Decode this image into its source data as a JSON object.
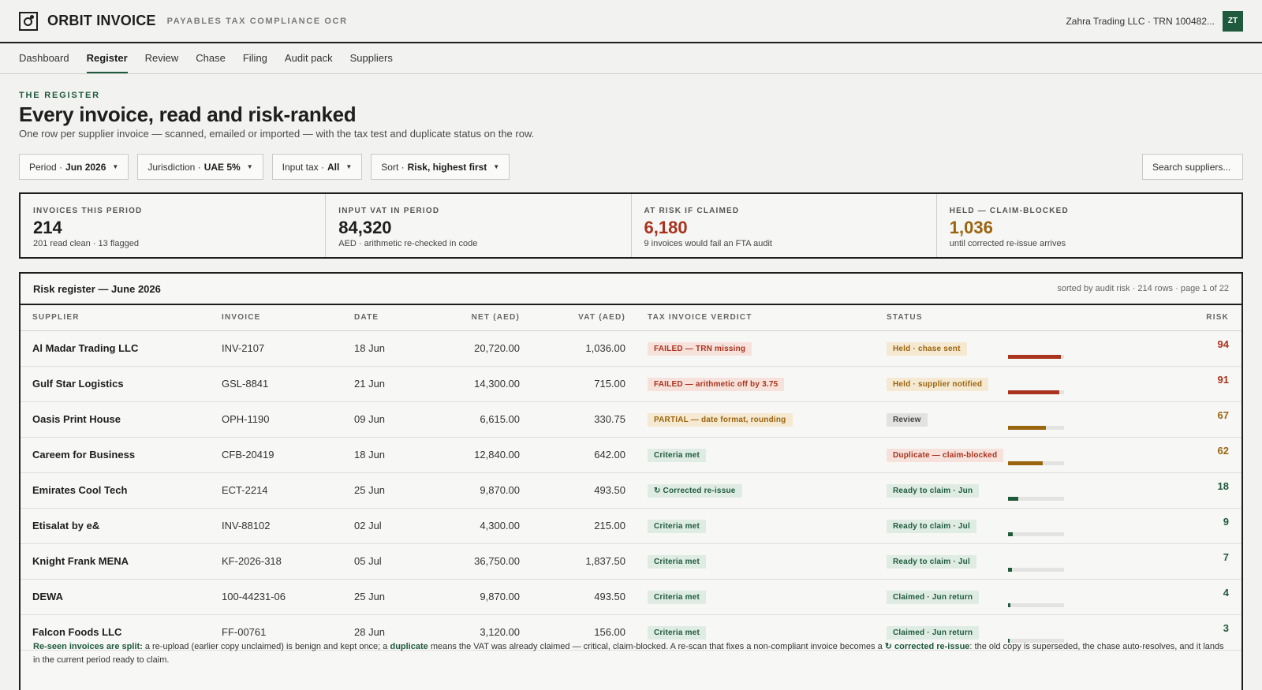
{
  "app": {
    "brand": "ORBIT INVOICE",
    "subtitle": "PAYABLES TAX COMPLIANCE OCR",
    "tenant": "Zahra Trading LLC · TRN 100482...",
    "avatar": "ZT"
  },
  "nav": [
    "Dashboard",
    "Register",
    "Review",
    "Chase",
    "Filing",
    "Audit pack",
    "Suppliers"
  ],
  "nav_active": "Register",
  "header": {
    "eyebrow": "THE REGISTER",
    "title": "Every invoice, read and risk-ranked",
    "subtitle": "One row per supplier invoice — scanned, emailed or imported — with the tax test and duplicate status on the row."
  },
  "filters": [
    {
      "label": "Period · ",
      "value": "Jun 2026"
    },
    {
      "label": "Jurisdiction · ",
      "value": "UAE 5%"
    },
    {
      "label": "Input tax · ",
      "value": "All"
    },
    {
      "label": "Sort · ",
      "value": "Risk, highest first"
    }
  ],
  "search": {
    "placeholder": "Search suppliers..."
  },
  "kpis": [
    {
      "label": "INVOICES THIS PERIOD",
      "value": "214",
      "note": "201 read clean · 13 flagged",
      "color": "#1d1f1c"
    },
    {
      "label": "INPUT VAT IN PERIOD",
      "value": "84,320",
      "note": "AED · arithmetic re-checked in code",
      "color": "#1d1f1c"
    },
    {
      "label": "AT RISK IF CLAIMED",
      "value": "6,180",
      "note": "9 invoices would fail an FTA audit",
      "color": "#a9331d"
    },
    {
      "label": "HELD — CLAIM-BLOCKED",
      "value": "1,036",
      "note": "until corrected re-issue arrives",
      "color": "#9a650f"
    }
  ],
  "register": {
    "title": "Risk register — June 2026",
    "meta": "sorted by audit risk · 214 rows · page 1 of 22",
    "columns": {
      "supplier": "SUPPLIER",
      "invoice": "INVOICE",
      "date": "DATE",
      "net": "NET (AED)",
      "vat": "VAT (AED)",
      "verdict": "TAX INVOICE VERDICT",
      "status": "STATUS",
      "risk": "RISK"
    },
    "rows": [
      {
        "supplier": "Al Madar Trading LLC",
        "invoice": "INV-2107",
        "date": "18 Jun",
        "net": "20,720.00",
        "vat": "1,036.00",
        "verdict": "FAILED — TRN missing",
        "verdict_tone": "red",
        "status": "Held · chase sent",
        "status_tone": "amber",
        "risk": "94",
        "risk_level": 0.94,
        "risk_color": "#a9331d"
      },
      {
        "supplier": "Gulf Star Logistics",
        "invoice": "GSL-8841",
        "date": "21 Jun",
        "net": "14,300.00",
        "vat": "715.00",
        "verdict": "FAILED — arithmetic off by 3.75",
        "verdict_tone": "red",
        "status": "Held · supplier notified",
        "status_tone": "amber",
        "risk": "91",
        "risk_level": 0.91,
        "risk_color": "#a9331d"
      },
      {
        "supplier": "Oasis Print House",
        "invoice": "OPH-1190",
        "date": "09 Jun",
        "net": "6,615.00",
        "vat": "330.75",
        "verdict": "PARTIAL — date format, rounding",
        "verdict_tone": "amber",
        "status": "Review",
        "status_tone": "grey",
        "risk": "67",
        "risk_level": 0.67,
        "risk_color": "#9a650f"
      },
      {
        "supplier": "Careem for Business",
        "invoice": "CFB-20419",
        "date": "18 Jun",
        "net": "12,840.00",
        "vat": "642.00",
        "verdict": "Criteria met",
        "verdict_tone": "green",
        "status": "Duplicate — claim-blocked",
        "status_tone": "dup",
        "risk": "62",
        "risk_level": 0.62,
        "risk_color": "#9a650f"
      },
      {
        "supplier": "Emirates Cool Tech",
        "invoice": "ECT-2214",
        "date": "25 Jun",
        "net": "9,870.00",
        "vat": "493.50",
        "verdict": "↻ Corrected re-issue",
        "verdict_tone": "green",
        "status": "Ready to claim · Jun",
        "status_tone": "green",
        "risk": "18",
        "risk_level": 0.18,
        "risk_color": "#1f5a3c"
      },
      {
        "supplier": "Etisalat by e&",
        "invoice": "INV-88102",
        "date": "02 Jul",
        "net": "4,300.00",
        "vat": "215.00",
        "verdict": "Criteria met",
        "verdict_tone": "green",
        "status": "Ready to claim · Jul",
        "status_tone": "green",
        "risk": "9",
        "risk_level": 0.09,
        "risk_color": "#1f5a3c"
      },
      {
        "supplier": "Knight Frank MENA",
        "invoice": "KF-2026-318",
        "date": "05 Jul",
        "net": "36,750.00",
        "vat": "1,837.50",
        "verdict": "Criteria met",
        "verdict_tone": "green",
        "status": "Ready to claim · Jul",
        "status_tone": "green",
        "risk": "7",
        "risk_level": 0.07,
        "risk_color": "#1f5a3c"
      },
      {
        "supplier": "DEWA",
        "invoice": "100-44231-06",
        "date": "25 Jun",
        "net": "9,870.00",
        "vat": "493.50",
        "verdict": "Criteria met",
        "verdict_tone": "green",
        "status": "Claimed · Jun return",
        "status_tone": "green",
        "risk": "4",
        "risk_level": 0.04,
        "risk_color": "#1f5a3c"
      },
      {
        "supplier": "Falcon Foods LLC",
        "invoice": "FF-00761",
        "date": "28 Jun",
        "net": "3,120.00",
        "vat": "156.00",
        "verdict": "Criteria met",
        "verdict_tone": "green",
        "status": "Claimed · Jun return",
        "status_tone": "green",
        "risk": "3",
        "risk_level": 0.03,
        "risk_color": "#1f5a3c"
      }
    ]
  },
  "footnote": {
    "lead": "Re-seen invoices are split:",
    "p1": " a re-upload (earlier copy unclaimed) is benign and kept once; a ",
    "dup": "duplicate",
    "p2": " means the VAT was already claimed — critical, claim-blocked. A re-scan that fixes a non-compliant invoice becomes a ",
    "corr": "↻ corrected re-issue",
    "p3": ": the old copy is superseded, the chase auto-resolves, and it lands in the current period ready to claim."
  }
}
